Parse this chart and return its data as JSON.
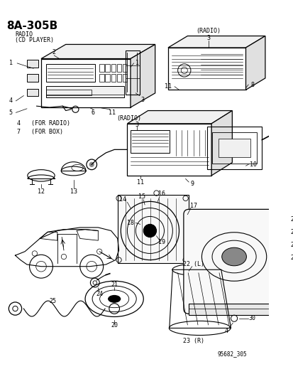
{
  "title": "8A-305B",
  "subtitle_line1": "RADIO",
  "subtitle_line2": "(CD PLAYER)",
  "part_number": "95682_305",
  "background_color": "#ffffff",
  "line_color": "#000000",
  "text_color": "#000000"
}
